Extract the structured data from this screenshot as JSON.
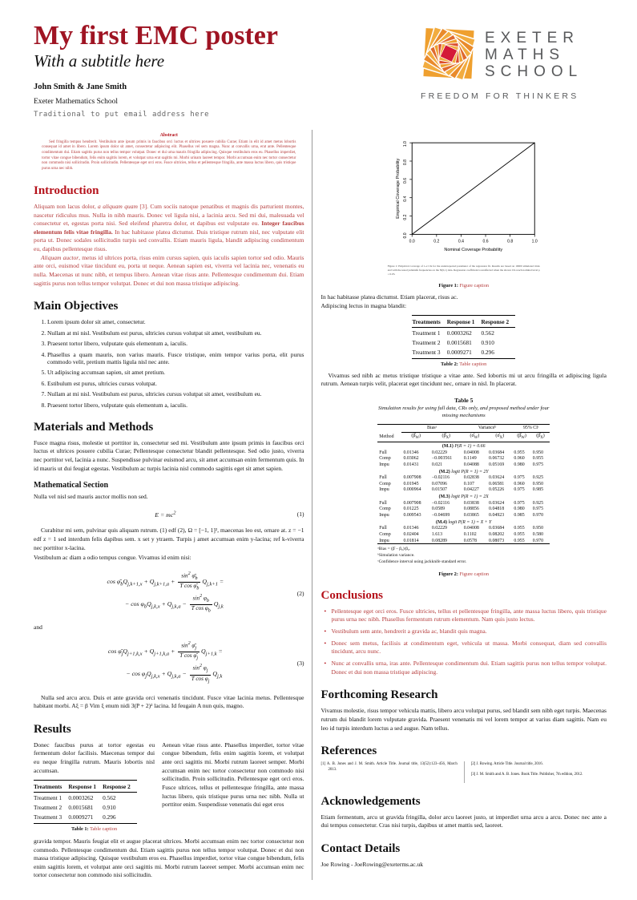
{
  "header": {
    "title": "My first EMC poster",
    "subtitle": "With a subtitle here",
    "authors": "John Smith & Jane Smith",
    "institution": "Exeter Mathematics School",
    "email_note": "Traditional to put email address here"
  },
  "logo": {
    "word1": "EXETER",
    "word2": "MATHS",
    "word3": "SCHOOL",
    "tagline": "FREEDOM FOR THINKERS",
    "colors": {
      "orange": "#EFA02F",
      "light_orange": "#F2AC3F",
      "dark_orange": "#E06A2E",
      "red": "#D41A38",
      "gray": "#58595B"
    }
  },
  "abstract": {
    "heading": "Abstract",
    "text": "Sed fringilla tempus hendrerit. Vestibulum ante ipsum primis in faucibus orci luctus et ultrices posuere cubilia Curae; Etiam in elit id amet metus lobortis consequat id amet in libero. Lorem ipsum dolor sit amet, consectetur adipiscing elit. Phasellus vel sem magna. Nunc at convallis urna, erat ante. Pellentesque condimentum dui. Etiam sagittis purus non tellus tempor volutpat. Donec et dui urna mauris fringilla adipiscing. Quisque vestibulum eros eu. Phasellus imperdiet, tortor vitae congue bibendum, felis enim sagittis lorem, et volutpat urna erat sagittis mi. Morbi urinam laoreet tempor. Morbi accumsan enim nec tortor consectetur non commodo nisi sollicitudin. Proin sollicitudin. Pellentesque eget orci eros. Fusce ultricies, tellus et pellentesque fringilla, ante massa luctus libero, quis tristique purus urna nec nibh."
  },
  "introduction": {
    "heading": "Introduction",
    "p1_pre": "Aliquam non lacus dolor, ",
    "p1_italic": "a aliquam quam",
    "p1_mid": " [3]. Cum sociis natoque penatibus et magnis dis parturient montes, nascetur ridiculus mus. Nulla in nibh mauris. Donec vel ligula nisi, a lacinia arcu. Sed mi dui, malesuada vel consectetur et, egestas porta nisi. Sed eleifend pharetra dolor, et dapibus est vulputate eu. ",
    "p1_bold": "Integer faucibus elementum felis vitae fringilla.",
    "p1_post": " In hac habitasse platea dictumst. Duis tristique rutrum nisl, nec vulputate elit porta ut. Donec sodales sollicitudin turpis sed convallis. Etiam mauris ligula, blandit adipiscing condimentum eu, dapibus pellentesque risus.",
    "p2_italic": "Aliquam auctor",
    "p2_rest": ", metus id ultrices porta, risus enim cursus sapien, quis iaculis sapien tortor sed odio. Mauris ante orci, euismod vitae tincidunt eu, porta ut neque. Aenean sapien est, viverra vel lacinia nec, venenatis eu nulla. Maecenas ut nunc nibh, et tempus libero. Aenean vitae risus ante. Pellentesque condimentum dui. Etiam sagittis purus non tellus tempor volutpat. Donec et dui non massa tristique adipiscing."
  },
  "objectives": {
    "heading": "Main Objectives",
    "items": [
      "Lorem ipsum dolor sit amet, consectetur.",
      "Nullam at mi nisl. Vestibulum est purus, ultricies cursus volutpat sit amet, vestibulum eu.",
      "Praesent tortor libero, vulputate quis elementum a, iaculis.",
      "Phasellus a quam mauris, non varius mauris. Fusce tristique, enim tempor varius porta, elit purus commodo velit, pretium mattis ligula nisl nec ante.",
      "Ut adipiscing accumsan sapien, sit amet pretium.",
      "Estibulum est purus, ultricies cursus volutpat.",
      "Nullam at mi nisl. Vestibulum est purus, ultricies cursus volutpat sit amet, vestibulum eu.",
      "Praesent tortor libero, vulputate quis elementum a, iaculis."
    ]
  },
  "methods": {
    "heading": "Materials and Methods",
    "p1": "Fusce magna risus, molestie ut porttitor in, consectetur sed mi. Vestibulum ante ipsum primis in faucibus orci luctus et ultrices posuere cubilia Curae; Pellentesque consectetur blandit pellentesque. Sed odio justo, viverra nec porttitor vel, lacinia a nunc. Suspendisse pulvinar euismod arcu, sit amet accumsan enim fermentum quis. In id mauris ut dui feugiat egestas. Vestibulum ac turpis lacinia nisl commodo sagittis eget sit amet sapien.",
    "subheading": "Mathematical Section",
    "p2": "Nulla vel nisl sed mauris auctor mollis non sed.",
    "eq1_body": "E = mc^{2}",
    "eq1_number": "(1)",
    "p3": "Curabitur mi sem, pulvinar quis aliquam rutrum. (1) edf (2), Ω = [−1, 1]², maecenas leo est, ornare at. z = −1 edf z = 1 sed interdum felis dapibus sem. x set y ytraem. Turpis j amet accumsan enim y-lacina; ref k-viverra nec porttitor x-lacina.",
    "p4": "Vestibulum ac diam a odio tempus congue. Vivamus id enim nisi:",
    "eq2": {
      "l1pre": "cos φ̄_{b}Q_{j,k+1,x} + Q_{j,k+1,a} + ",
      "l1num": "sin^{2} φ̄_{b}",
      "l1den": "T cos φ̄_{b}",
      "l1post": "Q_{j,k+1}  =",
      "l2pre": "− cos φ_{b}Q_{j,k,x} + Q_{j,k,a} − ",
      "l2num": "sin^{2} φ_{b}",
      "l2den": "T cos φ_{b}",
      "l2post": "Q_{j,k}",
      "number": "(2)"
    },
    "connector": "and",
    "eq3": {
      "l1pre": "cos φ̄_{j}Q_{j+1,k,x} + Q_{j+1,k,a} + ",
      "l1num": "sin^{2} φ̄_{j}",
      "l1den": "T cos φ̄_{j}",
      "l1post": "Q_{j+1,k}  =",
      "l2pre": "− cos φ_{j}Q_{j,k,x} + Q_{j,k,a} − ",
      "l2num": "sin^{2} φ_{j}",
      "l2den": "T cos φ_{j}",
      "l2post": "Q_{j,k}",
      "number": "(3)"
    },
    "p5": "Nulla sed arcu arcu. Duis et ante gravida orci venenatis tincidunt. Fusce vitae lacinia metus. Pellentesque habitant morbi. Aξ = β Vim ξ enum nidi 3(P + 2)² lacina. Id feugain A nun quis, magno."
  },
  "results": {
    "heading": "Results",
    "left_intro": "Donec faucibus purus at tortor egestas eu fermentum dolor facilisis. Maecenas tempor dui eu neque fringilla rutrum. Mauris lobortis nisl accumsan.",
    "right_text": "Aenean vitae risus ante. Phasellus imperdiet, tortor vitae congue bibendum, felis enim sagittis lorem, et volutpat ante orci sagittis mi. Morbi rutrum laoreet semper. Morbi accumsan enim nec tortor consectetur non commodo nisi sollicitudin. Proin sollicitudin. Pellentesque eget orci eros. Fusce ultrices, tellus et pellentesque fringilla, ante massa luctus libero, quis tristique purus urna nec nibh. Nulla ut porttitor enim. Suspendisse venenatis dui eget eros",
    "bottom_text": "gravida tempor. Mauris feugiat elit et augue placerat ultrices. Morbi accumsan enim nec tortor consectetur non commodo. Pellentesque condimentum dui. Etiam sagittis purus non tellus tempor volutpat. Donec et dui non massa tristique adipiscing. Quisque vestibulum eros eu. Phasellus imperdiet, tortor vitae congue bibendum, felis enim sagittis lorem, et volutpat ante orci sagittis mi. Morbi rutrum laoreet semper. Morbi accumsan enim nec tortor consectetur non commodo nisi sollicitudin."
  },
  "treatment_table": {
    "headers": [
      "Treatments",
      "Response 1",
      "Response 2"
    ],
    "rows": [
      [
        "Treatment 1",
        "0.0003262",
        "0.562"
      ],
      [
        "Treatment 2",
        "0.0015681",
        "0.910"
      ],
      [
        "Treatment 3",
        "0.0009271",
        "0.296"
      ]
    ]
  },
  "captions": {
    "table1_label": "Table 1:",
    "table1_text": "Table caption",
    "table2_label": "Table 2:",
    "table2_text": "Table caption",
    "figure1_label": "Figure 1:",
    "figure1_text": "Figure caption",
    "figure2_label": "Figure 2:",
    "figure2_text": "Figure caption"
  },
  "right_column": {
    "after_figure_line1": "In hac habitasse platea dictumst. Etiam placerat, risus ac.",
    "after_figure_line2": "Adipiscing lectus in magna blandit:",
    "after_table2": "Vivamus sed nibh ac metus tristique tristique a vitae ante. Sed lobortis mi ut arcu fringilla et adipiscing ligula rutrum. Aenean turpis velit, placerat eget tincidunt nec, ornare in nisl. In placerat.",
    "table5": {
      "title": "Table 5",
      "subtitle": "Simulation results for using full data, CRs only, and proposed method under four missing mechanisms",
      "group_headers": [
        "Biasᵃ",
        "Varianceᵇ",
        "95% CIᶜ"
      ],
      "method_header": "Method",
      "col_headers": [
        "(β̂_{W})",
        "(β̂_{X})",
        "(σ̂_{W})",
        "(σ̂_{X})",
        "(β̂_{W})",
        "(β̂_{X})"
      ],
      "sections": [
        {
          "tag": "(M.1)",
          "formula": "P(R = 1) = 0.66",
          "rows": [
            [
              "Full",
              "0.01346",
              "0.02229",
              "0.04008",
              "0.03684",
              "0.955",
              "0.950"
            ],
            [
              "Comp",
              "0.03062",
              "−0.003561",
              "0.1149",
              "0.06732",
              "0.960",
              "0.955"
            ],
            [
              "Impu",
              "0.01431",
              "0.021",
              "0.04088",
              "0.05169",
              "0.980",
              "0.975"
            ]
          ]
        },
        {
          "tag": "(M.2)",
          "formula": "logit P(R = 1) = 2Y",
          "rows": [
            [
              "Full",
              "0.007908",
              "−0.02116",
              "0.02838",
              "0.03624",
              "0.975",
              "0.925"
            ],
            [
              "Comp",
              "0.01945",
              "0.07096",
              "0.107",
              "0.06581",
              "0.960",
              "0.950"
            ],
            [
              "Impu",
              "0.000964",
              "0.01507",
              "0.04227",
              "0.05226",
              "0.975",
              "0.985"
            ]
          ]
        },
        {
          "tag": "(M.3)",
          "formula": "logit P(R = 1) = 2X",
          "rows": [
            [
              "Full",
              "0.007908",
              "−0.02116",
              "0.03838",
              "0.03624",
              "0.975",
              "0.925"
            ],
            [
              "Comp",
              "0.01225",
              "0.0589",
              "0.08856",
              "0.04818",
              "0.980",
              "0.975"
            ],
            [
              "Impu",
              "0.009543",
              "−0.04699",
              "0.03865",
              "0.04923",
              "0.985",
              "0.970"
            ]
          ]
        },
        {
          "tag": "(M.4)",
          "formula": "logit P(R = 1) = X + Y",
          "rows": [
            [
              "Full",
              "0.01346",
              "0.02229",
              "0.04008",
              "0.03684",
              "0.955",
              "0.950"
            ],
            [
              "Comp",
              "0.02404",
              "1.613",
              "0.1102",
              "0.08202",
              "0.955",
              "0.580"
            ],
            [
              "Impu",
              "0.01814",
              "0.08289",
              "0.0578",
              "0.08073",
              "0.955",
              "0.970"
            ]
          ]
        }
      ],
      "footnotes": [
        "ᵃBias = (β̄ − β₀)/β₀.",
        "ᵇSimulation variance.",
        "ᶜConfidence interval using jackknife standard error."
      ]
    },
    "conclusions": {
      "heading": "Conclusions",
      "bullets": [
        "Pellentesque eget orci eros. Fusce ultricies, tellus et pellentesque fringilla, ante massa luctus libero, quis tristique purus urna nec nibh. Phasellus fermentum rutrum elementum. Nam quis justo lectus.",
        "Vestibulum sem ante, hendrerit a gravida ac, blandit quis magna.",
        "Donec sem metus, facilisis at condimentum eget, vehicula ut massa. Morbi consequat, diam sed convallis tincidunt, arcu nunc.",
        "Nunc at convallis urna, iras ante. Pellentesque condimentum dui. Etiam sagittis purus non tellus tempor volutpat. Donec et dui non massa tristique adipiscing."
      ]
    },
    "forthcoming": {
      "heading": "Forthcoming Research",
      "text": "Vivamus molestie, risus tempor vehicula mattis, libero arcu volutpat purus, sed blandit sem nibh eget turpis. Maecenas rutrum dui blandit lorem vulputate gravida. Praesent venenatis mi vel lorem tempor at varius diam sagittis. Nam eu leo id turpis interdum luctus a sed augue. Nam tellus."
    },
    "references": {
      "heading": "References",
      "items": [
        "[1] A. B. Jones and J. M. Smith. Article Title. Journal title, 13(52):123–456, March 2013.",
        "[2] J. Rowing. Article Title. Journal title, 2016.",
        "[3] J. M. Smith and A. B. Jones. Book Title. Publisher, 7th edition, 2012."
      ]
    },
    "acknowledgements": {
      "heading": "Acknowledgements",
      "text": "Etiam fermentum, arcu ut gravida fringilla, dolor arcu laoreet justo, ut imperdiet urna arcu a arcu. Donec nec ante a dui tempus consectetur. Cras nisi turpis, dapibus ut amet mattis sed, laoreet."
    },
    "contact": {
      "heading": "Contact Details",
      "text": "Joe Rowing - JoeRowing@exeterms.ac.uk"
    }
  },
  "chart_data": {
    "type": "line",
    "title": "",
    "xlabel": "Nominal Coverage Probability",
    "ylabel": "Empirical Coverage Probability",
    "xlim": [
      0.0,
      1.0
    ],
    "ylim": [
      0.0,
      1.0
    ],
    "xticks": [
      0.0,
      0.2,
      0.4,
      0.6,
      0.8,
      1.0
    ],
    "yticks": [
      0.0,
      0.2,
      0.4,
      0.6,
      0.8,
      1.0
    ],
    "grid": false,
    "legend": "none",
    "series": [
      {
        "name": "identity line",
        "x": [
          0.0,
          1.0
        ],
        "y": [
          0.0,
          1.0
        ]
      }
    ],
    "embedded_caption": "Figure 1: Empirical coverage of 1-α CIs for the underreported parameter of the regression fit. Results are based on 10000 simulated trials and with the usual jackknife frequencies on the N(0,1) data. Regression coefficient is unaffected when the shown CIs reach nominal level p = 0.05."
  }
}
